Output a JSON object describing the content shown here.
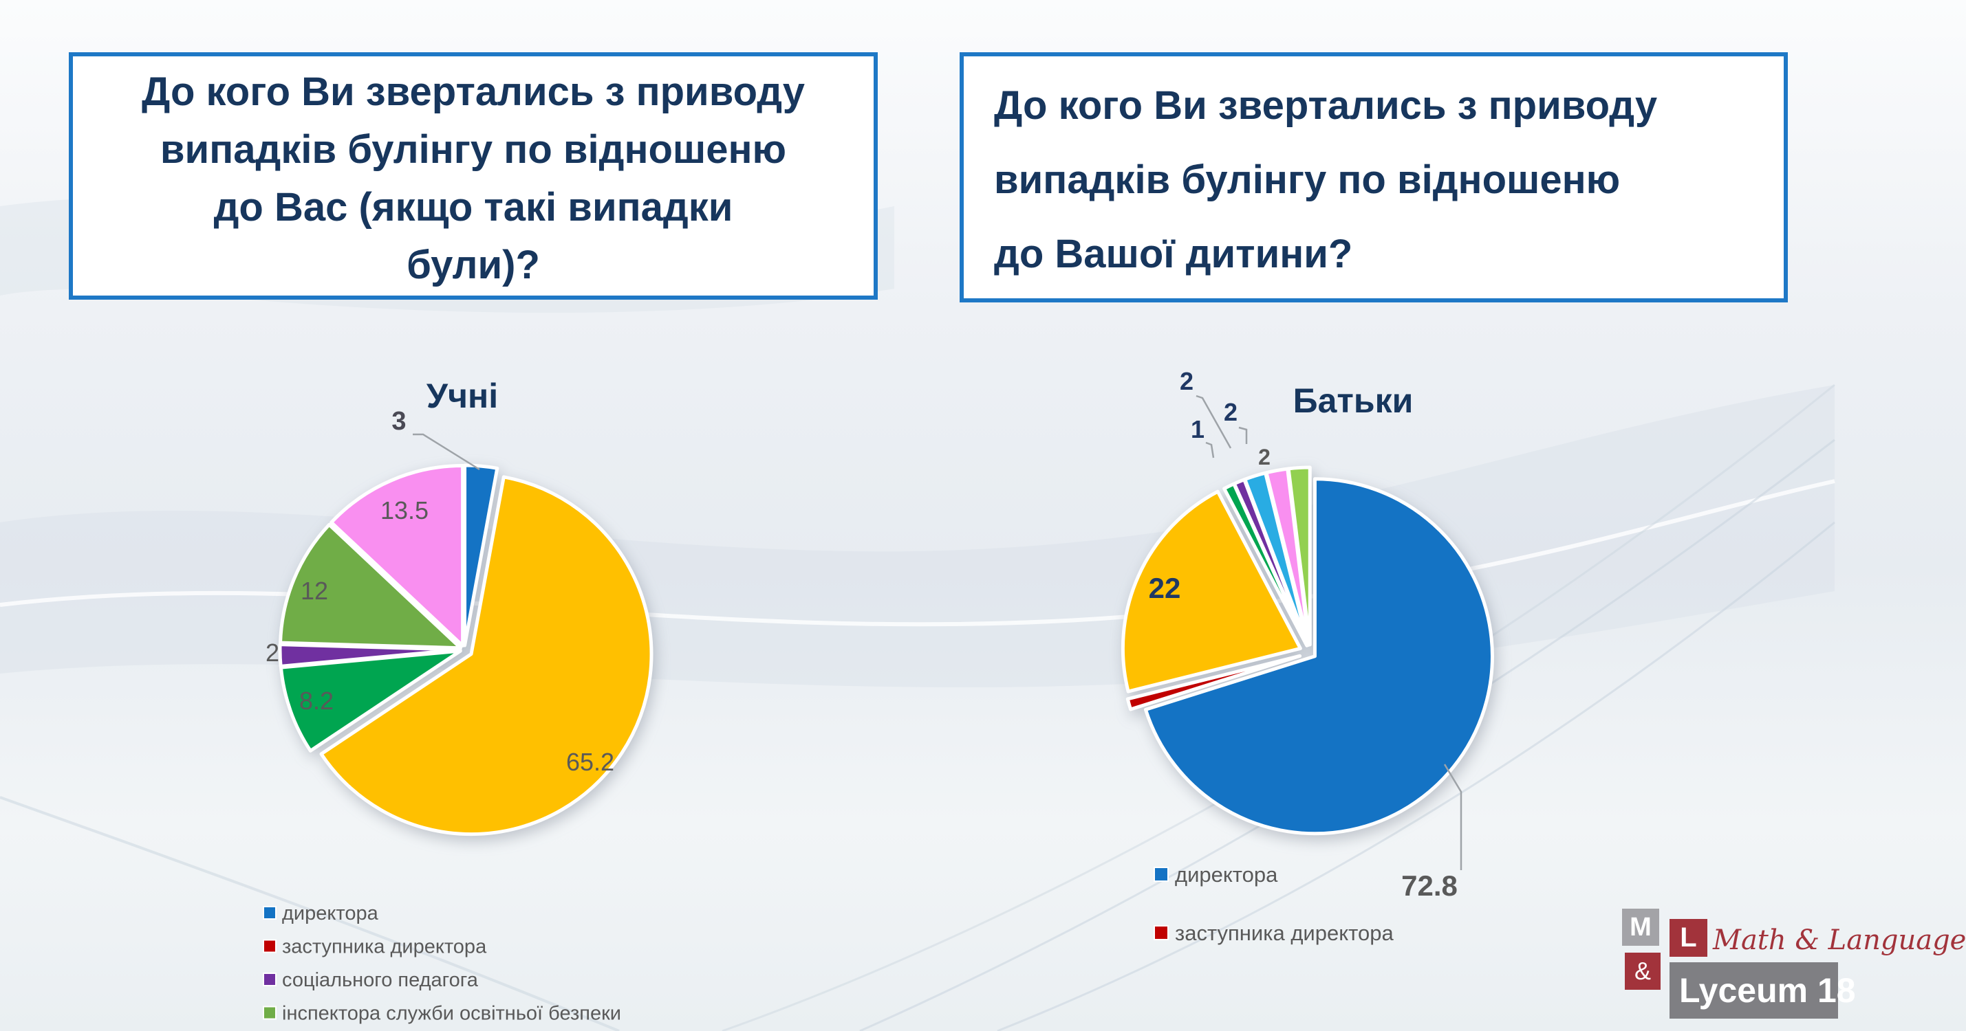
{
  "slide": {
    "questions": [
      {
        "lines": [
          "До кого Ви звертались з приводу",
          "випадків булінгу по відношеню",
          "до Вас  (якщо такі випадки",
          "були)?"
        ]
      },
      {
        "lines": [
          "До кого Ви звертались з приводу",
          "випадків булінгу по відношеню",
          "до Вашої дитини?"
        ]
      }
    ],
    "logo": {
      "m": "M",
      "ampersand": "&",
      "l": "L",
      "script": "Math & Language",
      "bar": "Lyceum 18"
    },
    "colors": {
      "accent_blue": "#1E78C6",
      "title_navy": "#17365D",
      "label_gray": "#595959",
      "label_navy": "#1F3864"
    }
  },
  "chart_data": [
    {
      "type": "pie",
      "title": "Учні",
      "legend_position": "bottom-left",
      "slices": [
        {
          "name": "директора",
          "value": 3,
          "label": "3",
          "color": "#1473C4"
        },
        {
          "name": "",
          "value": 65.2,
          "label": "65.2",
          "color": "#FFC000"
        },
        {
          "name": "",
          "value": 8.2,
          "label": "8.2",
          "color": "#00A550"
        },
        {
          "name": "соціального педагога",
          "value": 2,
          "label": "2",
          "color": "#7030A0"
        },
        {
          "name": "інспектора служби освітньої безпеки",
          "value": 12,
          "label": "12",
          "color": "#70AD47"
        },
        {
          "name": "",
          "value": 13.5,
          "label": "13.5",
          "color": "#F98FF0"
        }
      ],
      "legend": [
        {
          "label": "директора",
          "color": "#1473C4"
        },
        {
          "label": "заступника директора",
          "color": "#C00000"
        },
        {
          "label": "соціального педагога",
          "color": "#7030A0"
        },
        {
          "label": "інспектора служби освітньої безпеки",
          "color": "#70AD47"
        }
      ]
    },
    {
      "type": "pie",
      "title": "Батьки",
      "legend_position": "bottom-left",
      "slices": [
        {
          "name": "директора",
          "value": 72.8,
          "label": "72.8",
          "color": "#1473C4"
        },
        {
          "name": "заступника директора",
          "value": 1,
          "label": "",
          "color": "#C00000"
        },
        {
          "name": "",
          "value": 22,
          "label": "22",
          "color": "#FFC000"
        },
        {
          "name": "",
          "value": 1,
          "label": "1",
          "color": "#00A550"
        },
        {
          "name": "",
          "value": 1,
          "label": "",
          "color": "#7030A0"
        },
        {
          "name": "",
          "value": 2,
          "label": "2",
          "color": "#29ACE3"
        },
        {
          "name": "",
          "value": 2,
          "label": "2",
          "color": "#F98FF0"
        },
        {
          "name": "",
          "value": 2,
          "label": "2",
          "color": "#92D050"
        }
      ],
      "legend": [
        {
          "label": "директора",
          "color": "#1473C4"
        },
        {
          "label": "заступника директора",
          "color": "#C00000"
        }
      ]
    }
  ]
}
